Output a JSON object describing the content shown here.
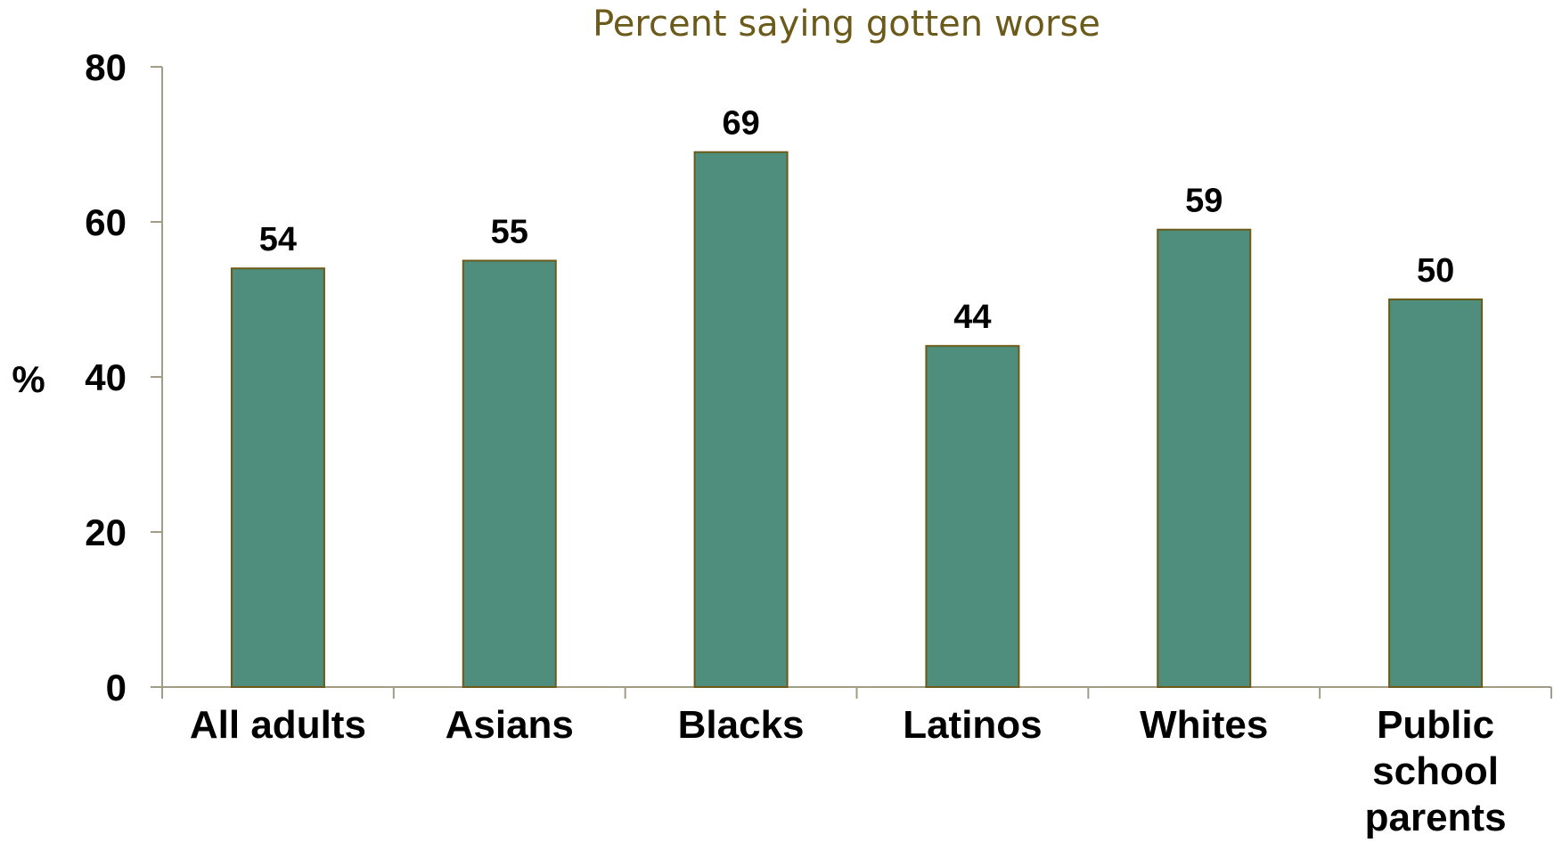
{
  "colors": {
    "bar_fill": "#4f8e7c",
    "bar_stroke": "#6b5a1a",
    "axis": "#a19c86",
    "title": "#6b5a1a"
  },
  "chart_data": {
    "type": "bar",
    "title": "Percent saying gotten worse",
    "ylabel": "%",
    "xlabel": "",
    "categories": [
      "All adults",
      "Asians",
      "Blacks",
      "Latinos",
      "Whites",
      "Public school parents"
    ],
    "values": [
      54,
      55,
      69,
      44,
      59,
      50
    ],
    "data_labels": [
      "54",
      "55",
      "69",
      "44",
      "59",
      "50"
    ],
    "ylim": [
      0,
      80
    ],
    "yticks": [
      0,
      20,
      40,
      60,
      80
    ],
    "ytick_labels": [
      "0",
      "20",
      "40",
      "60",
      "80"
    ],
    "grid": false,
    "legend": "none"
  }
}
